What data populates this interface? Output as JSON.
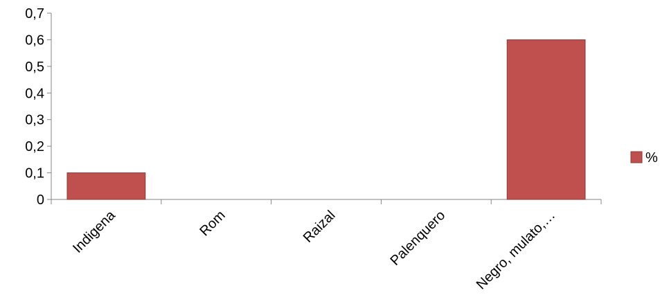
{
  "chart_data": {
    "type": "bar",
    "categories": [
      "Indigena",
      "Rom",
      "Raizal",
      "Palenquero",
      "Negro, mulato,…"
    ],
    "series": [
      {
        "name": "%",
        "values": [
          0.1,
          0,
          0,
          0,
          0.6
        ],
        "color": "#C0504D"
      }
    ],
    "ylim": [
      0,
      0.7
    ],
    "yticks": [
      "0",
      "0,1",
      "0,2",
      "0,3",
      "0,4",
      "0,5",
      "0,6",
      "0,7"
    ],
    "title": "",
    "xlabel": "",
    "ylabel": "",
    "grid": false,
    "legend_position": "right"
  }
}
